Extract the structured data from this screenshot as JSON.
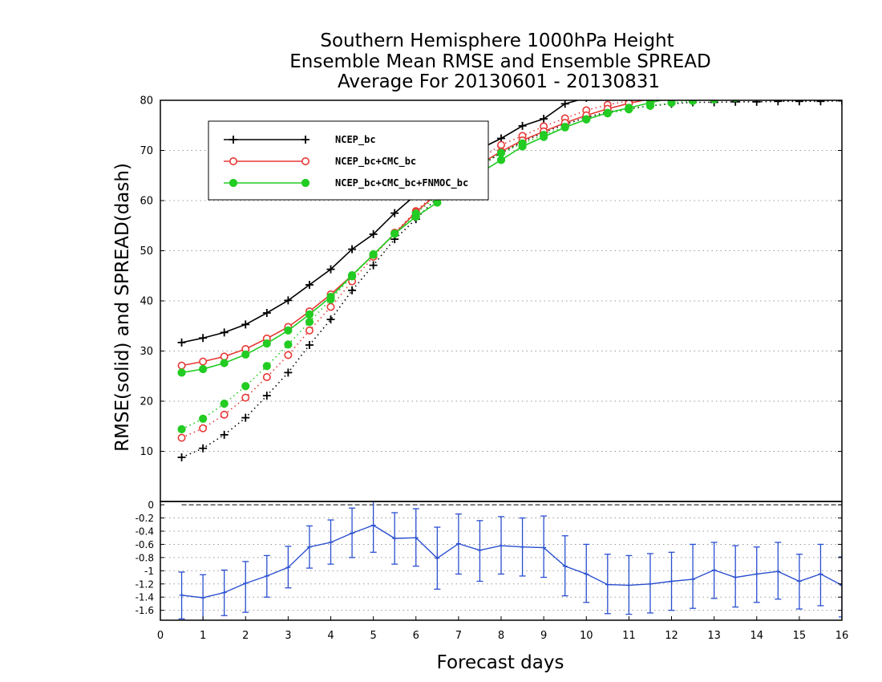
{
  "chart_data": [
    {
      "type": "line",
      "title": [
        "Southern Hemisphere 1000hPa Height",
        "Ensemble Mean RMSE and Ensemble SPREAD",
        "Average For 20130601 - 20130831"
      ],
      "ylabel": "RMSE(solid)  and  SPREAD(dash)",
      "xlim": [
        0,
        16
      ],
      "ylim": [
        0,
        80
      ],
      "yticks": [
        10,
        20,
        30,
        40,
        50,
        60,
        70,
        80
      ],
      "grid": true,
      "legend_position": "top-left",
      "x": [
        0.5,
        1,
        1.5,
        2,
        2.5,
        3,
        3.5,
        4,
        4.5,
        5,
        5.5,
        6,
        6.5,
        7,
        7.5,
        8,
        8.5,
        9,
        9.5,
        10,
        10.5,
        11,
        11.5,
        12,
        12.5,
        13,
        13.5,
        14,
        14.5,
        15,
        15.5,
        16
      ],
      "series": [
        {
          "name": "NCEP_bc",
          "color": "#000000",
          "marker": "plus",
          "rmse": [
            31.7,
            32.6,
            33.7,
            35.3,
            37.6,
            40.1,
            43.2,
            46.3,
            50.3,
            53.3,
            57.5,
            61.2,
            64.6,
            67.5,
            70.3,
            72.4,
            74.9,
            76.3,
            79.3,
            80.5,
            81.5,
            82,
            82.5,
            83,
            83.5,
            84,
            84.5,
            85,
            85.5,
            86,
            86.5,
            87
          ],
          "spread": [
            8.8,
            10.6,
            13.3,
            16.7,
            21.1,
            25.7,
            31.2,
            36.3,
            42.1,
            47.1,
            52.3,
            56.3,
            60.6,
            63.8,
            66.9,
            69.5,
            71.7,
            73.6,
            75.2,
            76.6,
            77.7,
            78.3,
            78.9,
            79.3,
            79.6,
            79.6,
            79.7,
            79.7,
            79.8,
            79.8,
            79.8,
            79.9
          ]
        },
        {
          "name": "NCEP_bc+CMC_bc",
          "color": "#e53935",
          "marker": "open-circle",
          "rmse": [
            27.1,
            27.9,
            28.9,
            30.4,
            32.5,
            34.8,
            37.9,
            41.3,
            45.1,
            49.2,
            53.4,
            57.7,
            61.4,
            64.7,
            67.3,
            69.8,
            72,
            73.8,
            75.5,
            77,
            78.3,
            79.4,
            80.3,
            81.2,
            82,
            82.7,
            83.3,
            83.8,
            84.3,
            84.7,
            85,
            85.3
          ],
          "spread": [
            12.7,
            14.6,
            17.3,
            20.7,
            24.8,
            29.2,
            34.1,
            38.8,
            43.9,
            48.8,
            53.6,
            57.9,
            61.7,
            65.2,
            68.3,
            71.1,
            72.9,
            74.8,
            76.4,
            78,
            79.1,
            79.9,
            80.5,
            81,
            81.4,
            81.7,
            82,
            82.2,
            82.4,
            82.5,
            82.6,
            82.7
          ]
        },
        {
          "name": "NCEP_bc+CMC_bc+FNMOC_bc",
          "color": "#22cc22",
          "marker": "filled-circle",
          "rmse": [
            25.7,
            26.4,
            27.6,
            29.3,
            31.5,
            34.1,
            37.3,
            40.8,
            45.1,
            49.2,
            53.4,
            56.8,
            59.6,
            62.8,
            65.5,
            68.1,
            70.8,
            72.7,
            74.6,
            76.2,
            77.5,
            78.5,
            79.5,
            80.5,
            81.3,
            82.1,
            82.8,
            83.4,
            84,
            84.5,
            84.9,
            85.3
          ],
          "spread": [
            14.4,
            16.5,
            19.5,
            23,
            27,
            31.3,
            35.8,
            40.3,
            44.9,
            49.3,
            53.4,
            57.4,
            61,
            64.3,
            67.1,
            69.5,
            71.4,
            73.1,
            74.7,
            76.2,
            77.4,
            78.2,
            78.9,
            79.5,
            79.9,
            80.2,
            80.5,
            80.7,
            80.9,
            81.1,
            81.2,
            81.3
          ]
        }
      ]
    },
    {
      "type": "line",
      "xlabel": "Forecast days",
      "xlim": [
        0,
        16
      ],
      "xticks": [
        0,
        1,
        2,
        3,
        4,
        5,
        6,
        7,
        8,
        9,
        10,
        11,
        12,
        13,
        14,
        15,
        16
      ],
      "ylim": [
        -1.75,
        0.05
      ],
      "yticks": [
        "0",
        "-0.2",
        "-0.4",
        "-0.6",
        "-0.8",
        "-1",
        "-1.2",
        "-1.4",
        "-1.6"
      ],
      "yticks_values": [
        0,
        -0.2,
        -0.4,
        -0.6,
        -0.8,
        -1,
        -1.2,
        -1.4,
        -1.6
      ],
      "grid": true,
      "zero_line": true,
      "series": [
        {
          "color": "#2a4fd0",
          "marker": "error-bar",
          "x": [
            0.5,
            1,
            1.5,
            2,
            2.5,
            3,
            3.5,
            4,
            4.5,
            5,
            5.5,
            6,
            6.5,
            7,
            7.5,
            8,
            8.5,
            9,
            9.5,
            10,
            10.5,
            11,
            11.5,
            12,
            12.5,
            13,
            13.5,
            14,
            14.5,
            15,
            15.5,
            16
          ],
          "values": [
            -1.37,
            -1.41,
            -1.33,
            -1.19,
            -1.08,
            -0.95,
            -0.64,
            -0.57,
            -0.43,
            -0.31,
            -0.51,
            -0.5,
            -0.81,
            -0.59,
            -0.69,
            -0.62,
            -0.64,
            -0.65,
            -0.93,
            -1.05,
            -1.21,
            -1.22,
            -1.2,
            -1.16,
            -1.13,
            -0.99,
            -1.1,
            -1.05,
            -1.01,
            -1.16,
            -1.05,
            -1.22
          ],
          "lower": [
            -1.73,
            -1.76,
            -1.68,
            -1.63,
            -1.4,
            -1.26,
            -0.96,
            -0.9,
            -0.8,
            -0.72,
            -0.9,
            -0.93,
            -1.28,
            -1.05,
            -1.16,
            -1.05,
            -1.08,
            -1.1,
            -1.38,
            -1.48,
            -1.65,
            -1.66,
            -1.64,
            -1.6,
            -1.57,
            -1.42,
            -1.55,
            -1.48,
            -1.43,
            -1.58,
            -1.53,
            -1.7
          ],
          "upper": [
            -1.02,
            -1.06,
            -0.99,
            -0.86,
            -0.77,
            -0.63,
            -0.32,
            -0.23,
            -0.05,
            0.08,
            -0.12,
            -0.06,
            -0.34,
            -0.14,
            -0.24,
            -0.18,
            -0.2,
            -0.17,
            -0.47,
            -0.6,
            -0.75,
            -0.77,
            -0.74,
            -0.72,
            -0.6,
            -0.57,
            -0.62,
            -0.64,
            -0.57,
            -0.75,
            -0.6,
            -0.79
          ]
        }
      ]
    }
  ]
}
